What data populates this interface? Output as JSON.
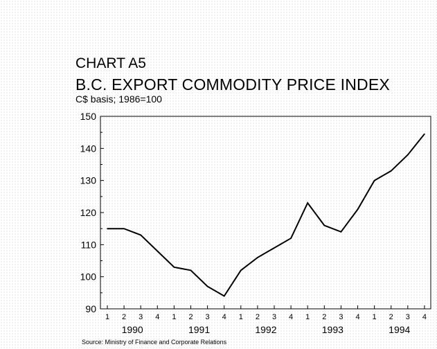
{
  "chart_data": {
    "type": "line",
    "title": "CHART A5",
    "subtitle": "B.C. EXPORT COMMODITY PRICE INDEX",
    "ylabel": "C$ basis; 1986=100",
    "xlabel": "",
    "ylim": [
      90,
      150
    ],
    "yticks": [
      "90",
      "100",
      "110",
      "120",
      "130",
      "140",
      "150"
    ],
    "quarter_labels": [
      "1",
      "2",
      "3",
      "4",
      "1",
      "2",
      "3",
      "4",
      "1",
      "2",
      "3",
      "4",
      "1",
      "2",
      "3",
      "4",
      "1",
      "2",
      "3",
      "4"
    ],
    "year_labels": [
      "1990",
      "1991",
      "1992",
      "1993",
      "1994"
    ],
    "grid": false,
    "series": [
      {
        "values": [
          115,
          115,
          113,
          108,
          103,
          102,
          97,
          94,
          102,
          106,
          109,
          112,
          123,
          116,
          114,
          121,
          130,
          133,
          138,
          144.5
        ]
      }
    ],
    "source": "Source: Ministry of Finance and Corporate Relations"
  }
}
